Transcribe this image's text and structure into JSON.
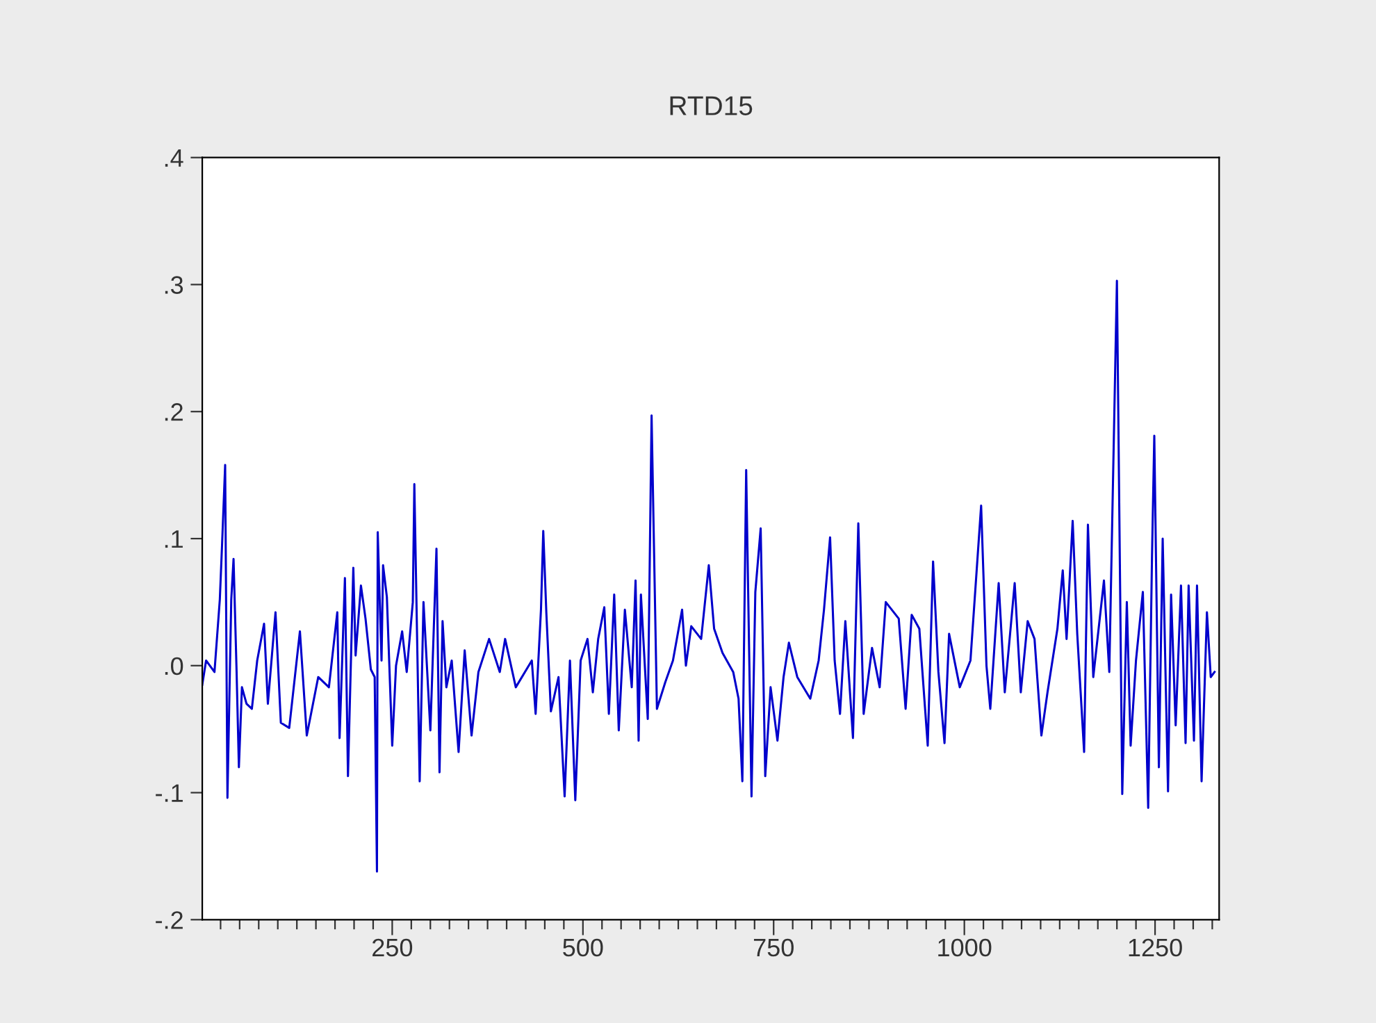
{
  "chart_data": {
    "type": "line",
    "title": "RTD15",
    "x": [
      1,
      6,
      17,
      24,
      27,
      31,
      34,
      39,
      42,
      46,
      49,
      53,
      59,
      66,
      73,
      82,
      87,
      97,
      104,
      115,
      129,
      138,
      153,
      167,
      178,
      181,
      188,
      192,
      199,
      202,
      209,
      215,
      222,
      227,
      230,
      231,
      236,
      238,
      243,
      250,
      255,
      263,
      269,
      277,
      279,
      286,
      291,
      300,
      308,
      312,
      316,
      321,
      328,
      337,
      345,
      354,
      363,
      377,
      391,
      398,
      412,
      433,
      438,
      445,
      448,
      452,
      458,
      468,
      476,
      483,
      490,
      497,
      506,
      513,
      520,
      528,
      534,
      541,
      547,
      555,
      564,
      569,
      573,
      576,
      585,
      590,
      597,
      608,
      618,
      630,
      635,
      642,
      655,
      665,
      672,
      683,
      697,
      704,
      709,
      714,
      721,
      726,
      733,
      739,
      746,
      755,
      763,
      770,
      781,
      798,
      809,
      816,
      824,
      830,
      837,
      844,
      854,
      861,
      868,
      879,
      889,
      897,
      914,
      923,
      931,
      941,
      952,
      959,
      966,
      974,
      980,
      994,
      1008,
      1022,
      1029,
      1034,
      1045,
      1053,
      1066,
      1074,
      1083,
      1092,
      1101,
      1109,
      1122,
      1129,
      1134,
      1142,
      1148,
      1157,
      1162,
      1169,
      1183,
      1190,
      1200,
      1207,
      1213,
      1218,
      1225,
      1234,
      1241,
      1246,
      1249,
      1255,
      1260,
      1267,
      1271,
      1277,
      1284,
      1290,
      1294,
      1301,
      1305,
      1311,
      1318,
      1323,
      1328
    ],
    "series": [
      {
        "color": "#0000cc",
        "values": [
          -0.015,
          0.004,
          -0.005,
          0.052,
          0.096,
          0.158,
          -0.104,
          0.052,
          0.084,
          -0.005,
          -0.08,
          -0.017,
          -0.03,
          -0.034,
          0.004,
          0.033,
          -0.03,
          0.042,
          -0.045,
          -0.049,
          0.027,
          -0.055,
          -0.009,
          -0.017,
          0.042,
          -0.057,
          0.069,
          -0.087,
          0.077,
          0.008,
          0.063,
          0.037,
          -0.003,
          -0.009,
          -0.162,
          0.105,
          0.004,
          0.079,
          0.054,
          -0.063,
          0.0,
          0.027,
          -0.005,
          0.05,
          0.143,
          -0.091,
          0.05,
          -0.051,
          0.092,
          -0.084,
          0.035,
          -0.017,
          0.004,
          -0.068,
          0.012,
          -0.055,
          -0.005,
          0.021,
          -0.005,
          0.021,
          -0.017,
          0.004,
          -0.038,
          0.044,
          0.106,
          0.042,
          -0.036,
          -0.009,
          -0.103,
          0.004,
          -0.106,
          0.004,
          0.021,
          -0.021,
          0.021,
          0.046,
          -0.038,
          0.056,
          -0.051,
          0.044,
          -0.017,
          0.067,
          -0.059,
          0.056,
          -0.042,
          0.197,
          -0.034,
          -0.013,
          0.004,
          0.044,
          0.0,
          0.031,
          0.021,
          0.079,
          0.029,
          0.01,
          -0.005,
          -0.026,
          -0.091,
          0.154,
          -0.103,
          0.058,
          0.108,
          -0.087,
          -0.017,
          -0.059,
          -0.009,
          0.018,
          -0.009,
          -0.026,
          0.004,
          0.044,
          0.101,
          0.004,
          -0.038,
          0.035,
          -0.057,
          0.112,
          -0.038,
          0.014,
          -0.017,
          0.05,
          0.037,
          -0.034,
          0.04,
          0.029,
          -0.063,
          0.082,
          -0.005,
          -0.061,
          0.025,
          -0.017,
          0.004,
          0.126,
          0.0,
          -0.034,
          0.065,
          -0.021,
          0.065,
          -0.021,
          0.035,
          0.021,
          -0.055,
          -0.021,
          0.029,
          0.075,
          0.021,
          0.114,
          0.025,
          -0.068,
          0.111,
          -0.009,
          0.067,
          -0.005,
          0.303,
          -0.101,
          0.05,
          -0.063,
          0.004,
          0.058,
          -0.112,
          0.086,
          0.181,
          -0.08,
          0.1,
          -0.099,
          0.056,
          -0.047,
          0.063,
          -0.061,
          0.063,
          -0.059,
          0.063,
          -0.091,
          0.042,
          -0.009,
          -0.005
        ]
      }
    ],
    "xlim": [
      1,
      1334
    ],
    "xticks": [
      {
        "value": 25,
        "label": null
      },
      {
        "value": 50,
        "label": null
      },
      {
        "value": 75,
        "label": null
      },
      {
        "value": 100,
        "label": null
      },
      {
        "value": 125,
        "label": null
      },
      {
        "value": 150,
        "label": null
      },
      {
        "value": 175,
        "label": null
      },
      {
        "value": 200,
        "label": null
      },
      {
        "value": 225,
        "label": null
      },
      250,
      {
        "value": 275,
        "label": null
      },
      {
        "value": 300,
        "label": null
      },
      {
        "value": 325,
        "label": null
      },
      {
        "value": 350,
        "label": null
      },
      {
        "value": 375,
        "label": null
      },
      {
        "value": 400,
        "label": null
      },
      {
        "value": 425,
        "label": null
      },
      {
        "value": 450,
        "label": null
      },
      {
        "value": 475,
        "label": null
      },
      500,
      {
        "value": 525,
        "label": null
      },
      {
        "value": 550,
        "label": null
      },
      {
        "value": 575,
        "label": null
      },
      {
        "value": 600,
        "label": null
      },
      {
        "value": 625,
        "label": null
      },
      {
        "value": 650,
        "label": null
      },
      {
        "value": 675,
        "label": null
      },
      {
        "value": 700,
        "label": null
      },
      {
        "value": 725,
        "label": null
      },
      750,
      {
        "value": 775,
        "label": null
      },
      {
        "value": 800,
        "label": null
      },
      {
        "value": 825,
        "label": null
      },
      {
        "value": 850,
        "label": null
      },
      {
        "value": 875,
        "label": null
      },
      {
        "value": 900,
        "label": null
      },
      {
        "value": 925,
        "label": null
      },
      {
        "value": 950,
        "label": null
      },
      {
        "value": 975,
        "label": null
      },
      1000,
      {
        "value": 1025,
        "label": null
      },
      {
        "value": 1050,
        "label": null
      },
      {
        "value": 1075,
        "label": null
      },
      {
        "value": 1100,
        "label": null
      },
      {
        "value": 1125,
        "label": null
      },
      {
        "value": 1150,
        "label": null
      },
      {
        "value": 1175,
        "label": null
      },
      {
        "value": 1200,
        "label": null
      },
      {
        "value": 1225,
        "label": null
      },
      1250,
      {
        "value": 1275,
        "label": null
      },
      {
        "value": 1300,
        "label": null
      },
      {
        "value": 1325,
        "label": null
      }
    ],
    "ylim": [
      -0.2,
      0.4
    ],
    "yticks": [
      {
        "value": -0.2,
        "label": "-.2"
      },
      {
        "value": -0.1,
        "label": "-.1"
      },
      {
        "value": 0.0,
        "label": ".0"
      },
      {
        "value": 0.1,
        "label": ".1"
      },
      {
        "value": 0.2,
        "label": ".2"
      },
      {
        "value": 0.3,
        "label": ".3"
      },
      {
        "value": 0.4,
        "label": ".4"
      }
    ],
    "grid": false
  }
}
